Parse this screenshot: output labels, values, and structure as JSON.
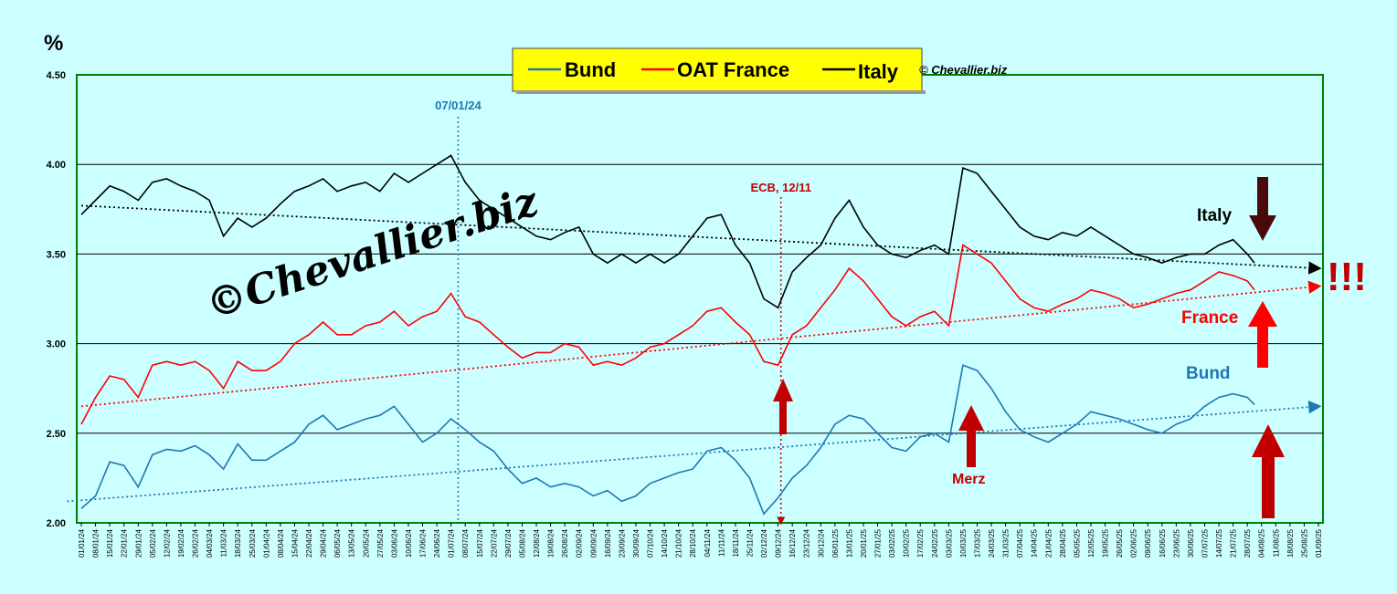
{
  "colors": {
    "background": "#ccffff",
    "plot_border": "#008000",
    "grid": "#000000",
    "bund": "#1f77b4",
    "france": "#ff0000",
    "italy": "#000000",
    "ecb": "#c00000",
    "legend_bg": "#ffff00",
    "big_arrow_red": "#ff0000",
    "big_arrow_dark": "#c00000",
    "italy_arrow": "#4a0a0a"
  },
  "chart_data": {
    "type": "line",
    "ylabel": "%",
    "ylim": [
      2.0,
      4.5
    ],
    "yticks": [
      "2.00",
      "2.50",
      "3.00",
      "3.50",
      "4.00",
      "4.50"
    ],
    "grid": "horizontal",
    "legend_placement": "top-center",
    "x_tick_labels": [
      "01/01/24",
      "08/01/24",
      "15/01/24",
      "22/01/24",
      "29/01/24",
      "05/02/24",
      "12/02/24",
      "19/02/24",
      "26/02/24",
      "04/03/24",
      "11/03/24",
      "18/03/24",
      "25/03/24",
      "01/04/24",
      "08/04/24",
      "15/04/24",
      "22/04/24",
      "29/04/24",
      "06/05/24",
      "13/05/24",
      "20/05/24",
      "27/05/24",
      "03/06/24",
      "10/06/24",
      "17/06/24",
      "24/06/24",
      "01/07/24",
      "08/07/24",
      "15/07/24",
      "22/07/24",
      "29/07/24",
      "05/08/24",
      "12/08/24",
      "19/08/24",
      "26/08/24",
      "02/09/24",
      "09/09/24",
      "16/09/24",
      "23/09/24",
      "30/09/24",
      "07/10/24",
      "14/10/24",
      "21/10/24",
      "28/10/24",
      "04/11/24",
      "11/11/24",
      "18/11/24",
      "25/11/24",
      "02/12/24",
      "09/12/24",
      "16/12/24",
      "23/12/24",
      "30/12/24",
      "06/01/25",
      "13/01/25",
      "20/01/25",
      "27/01/25",
      "03/02/25",
      "10/02/25",
      "17/02/25",
      "24/02/25",
      "03/03/25",
      "10/03/25",
      "17/03/25",
      "24/03/25",
      "31/03/25",
      "07/04/25",
      "14/04/25",
      "21/04/25",
      "28/04/25",
      "05/05/25",
      "12/05/25",
      "19/05/25",
      "26/05/25",
      "02/06/25",
      "09/06/25",
      "16/06/25",
      "23/06/25",
      "30/06/25",
      "07/07/25",
      "14/07/25",
      "21/07/25",
      "28/07/25",
      "04/08/25",
      "11/08/25",
      "18/08/25",
      "25/08/25",
      "01/09/25"
    ],
    "series": [
      {
        "name": "Bund",
        "color_key": "bund",
        "points": [
          [
            0,
            2.08
          ],
          [
            1,
            2.15
          ],
          [
            2,
            2.34
          ],
          [
            3,
            2.32
          ],
          [
            4,
            2.2
          ],
          [
            5,
            2.38
          ],
          [
            6,
            2.41
          ],
          [
            7,
            2.4
          ],
          [
            8,
            2.43
          ],
          [
            9,
            2.38
          ],
          [
            10,
            2.3
          ],
          [
            11,
            2.44
          ],
          [
            12,
            2.35
          ],
          [
            13,
            2.35
          ],
          [
            14,
            2.4
          ],
          [
            15,
            2.45
          ],
          [
            16,
            2.55
          ],
          [
            17,
            2.6
          ],
          [
            18,
            2.52
          ],
          [
            19,
            2.55
          ],
          [
            20,
            2.58
          ],
          [
            21,
            2.6
          ],
          [
            22,
            2.65
          ],
          [
            23,
            2.55
          ],
          [
            24,
            2.45
          ],
          [
            25,
            2.5
          ],
          [
            26,
            2.58
          ],
          [
            27,
            2.52
          ],
          [
            28,
            2.45
          ],
          [
            29,
            2.4
          ],
          [
            30,
            2.3
          ],
          [
            31,
            2.22
          ],
          [
            32,
            2.25
          ],
          [
            33,
            2.2
          ],
          [
            34,
            2.22
          ],
          [
            35,
            2.2
          ],
          [
            36,
            2.15
          ],
          [
            37,
            2.18
          ],
          [
            38,
            2.12
          ],
          [
            39,
            2.15
          ],
          [
            40,
            2.22
          ],
          [
            41,
            2.25
          ],
          [
            42,
            2.28
          ],
          [
            43,
            2.3
          ],
          [
            44,
            2.4
          ],
          [
            45,
            2.42
          ],
          [
            46,
            2.35
          ],
          [
            47,
            2.25
          ],
          [
            48,
            2.05
          ],
          [
            49,
            2.14
          ],
          [
            50,
            2.25
          ],
          [
            51,
            2.32
          ],
          [
            52,
            2.42
          ],
          [
            53,
            2.55
          ],
          [
            54,
            2.6
          ],
          [
            55,
            2.58
          ],
          [
            56,
            2.5
          ],
          [
            57,
            2.42
          ],
          [
            58,
            2.4
          ],
          [
            59,
            2.48
          ],
          [
            60,
            2.5
          ],
          [
            61,
            2.45
          ],
          [
            62,
            2.88
          ],
          [
            63,
            2.85
          ],
          [
            64,
            2.75
          ],
          [
            65,
            2.62
          ],
          [
            66,
            2.52
          ],
          [
            67,
            2.48
          ],
          [
            68,
            2.45
          ],
          [
            69,
            2.5
          ],
          [
            70,
            2.55
          ],
          [
            71,
            2.62
          ],
          [
            72,
            2.6
          ],
          [
            73,
            2.58
          ],
          [
            74,
            2.55
          ],
          [
            75,
            2.52
          ],
          [
            76,
            2.5
          ],
          [
            77,
            2.55
          ],
          [
            78,
            2.58
          ],
          [
            79,
            2.65
          ],
          [
            80,
            2.7
          ],
          [
            81,
            2.72
          ],
          [
            82,
            2.7
          ],
          [
            82.5,
            2.66
          ]
        ],
        "trend": [
          [
            -1,
            2.12
          ],
          [
            87,
            2.65
          ]
        ]
      },
      {
        "name": "OAT France",
        "color_key": "france",
        "points": [
          [
            0,
            2.55
          ],
          [
            1,
            2.7
          ],
          [
            2,
            2.82
          ],
          [
            3,
            2.8
          ],
          [
            4,
            2.7
          ],
          [
            5,
            2.88
          ],
          [
            6,
            2.9
          ],
          [
            7,
            2.88
          ],
          [
            8,
            2.9
          ],
          [
            9,
            2.85
          ],
          [
            10,
            2.75
          ],
          [
            11,
            2.9
          ],
          [
            12,
            2.85
          ],
          [
            13,
            2.85
          ],
          [
            14,
            2.9
          ],
          [
            15,
            3.0
          ],
          [
            16,
            3.05
          ],
          [
            17,
            3.12
          ],
          [
            18,
            3.05
          ],
          [
            19,
            3.05
          ],
          [
            20,
            3.1
          ],
          [
            21,
            3.12
          ],
          [
            22,
            3.18
          ],
          [
            23,
            3.1
          ],
          [
            24,
            3.15
          ],
          [
            25,
            3.18
          ],
          [
            26,
            3.28
          ],
          [
            27,
            3.15
          ],
          [
            28,
            3.12
          ],
          [
            29,
            3.05
          ],
          [
            30,
            2.98
          ],
          [
            31,
            2.92
          ],
          [
            32,
            2.95
          ],
          [
            33,
            2.95
          ],
          [
            34,
            3.0
          ],
          [
            35,
            2.98
          ],
          [
            36,
            2.88
          ],
          [
            37,
            2.9
          ],
          [
            38,
            2.88
          ],
          [
            39,
            2.92
          ],
          [
            40,
            2.98
          ],
          [
            41,
            3.0
          ],
          [
            42,
            3.05
          ],
          [
            43,
            3.1
          ],
          [
            44,
            3.18
          ],
          [
            45,
            3.2
          ],
          [
            46,
            3.12
          ],
          [
            47,
            3.05
          ],
          [
            48,
            2.9
          ],
          [
            49,
            2.88
          ],
          [
            50,
            3.05
          ],
          [
            51,
            3.1
          ],
          [
            52,
            3.2
          ],
          [
            53,
            3.3
          ],
          [
            54,
            3.42
          ],
          [
            55,
            3.35
          ],
          [
            56,
            3.25
          ],
          [
            57,
            3.15
          ],
          [
            58,
            3.1
          ],
          [
            59,
            3.15
          ],
          [
            60,
            3.18
          ],
          [
            61,
            3.1
          ],
          [
            62,
            3.55
          ],
          [
            63,
            3.5
          ],
          [
            64,
            3.45
          ],
          [
            65,
            3.35
          ],
          [
            66,
            3.25
          ],
          [
            67,
            3.2
          ],
          [
            68,
            3.18
          ],
          [
            69,
            3.22
          ],
          [
            70,
            3.25
          ],
          [
            71,
            3.3
          ],
          [
            72,
            3.28
          ],
          [
            73,
            3.25
          ],
          [
            74,
            3.2
          ],
          [
            75,
            3.22
          ],
          [
            76,
            3.25
          ],
          [
            77,
            3.28
          ],
          [
            78,
            3.3
          ],
          [
            79,
            3.35
          ],
          [
            80,
            3.4
          ],
          [
            81,
            3.38
          ],
          [
            82,
            3.35
          ],
          [
            82.5,
            3.3
          ]
        ],
        "trend": [
          [
            0,
            2.65
          ],
          [
            87,
            3.32
          ]
        ]
      },
      {
        "name": "Italy",
        "color_key": "italy",
        "points": [
          [
            0,
            3.72
          ],
          [
            1,
            3.8
          ],
          [
            2,
            3.88
          ],
          [
            3,
            3.85
          ],
          [
            4,
            3.8
          ],
          [
            5,
            3.9
          ],
          [
            6,
            3.92
          ],
          [
            7,
            3.88
          ],
          [
            8,
            3.85
          ],
          [
            9,
            3.8
          ],
          [
            10,
            3.6
          ],
          [
            11,
            3.7
          ],
          [
            12,
            3.65
          ],
          [
            13,
            3.7
          ],
          [
            14,
            3.78
          ],
          [
            15,
            3.85
          ],
          [
            16,
            3.88
          ],
          [
            17,
            3.92
          ],
          [
            18,
            3.85
          ],
          [
            19,
            3.88
          ],
          [
            20,
            3.9
          ],
          [
            21,
            3.85
          ],
          [
            22,
            3.95
          ],
          [
            23,
            3.9
          ],
          [
            24,
            3.95
          ],
          [
            25,
            4.0
          ],
          [
            26,
            4.05
          ],
          [
            27,
            3.9
          ],
          [
            28,
            3.8
          ],
          [
            29,
            3.75
          ],
          [
            30,
            3.7
          ],
          [
            31,
            3.65
          ],
          [
            32,
            3.6
          ],
          [
            33,
            3.58
          ],
          [
            34,
            3.62
          ],
          [
            35,
            3.65
          ],
          [
            36,
            3.5
          ],
          [
            37,
            3.45
          ],
          [
            38,
            3.5
          ],
          [
            39,
            3.45
          ],
          [
            40,
            3.5
          ],
          [
            41,
            3.45
          ],
          [
            42,
            3.5
          ],
          [
            43,
            3.6
          ],
          [
            44,
            3.7
          ],
          [
            45,
            3.72
          ],
          [
            46,
            3.55
          ],
          [
            47,
            3.45
          ],
          [
            48,
            3.25
          ],
          [
            49,
            3.2
          ],
          [
            50,
            3.4
          ],
          [
            51,
            3.48
          ],
          [
            52,
            3.55
          ],
          [
            53,
            3.7
          ],
          [
            54,
            3.8
          ],
          [
            55,
            3.65
          ],
          [
            56,
            3.55
          ],
          [
            57,
            3.5
          ],
          [
            58,
            3.48
          ],
          [
            59,
            3.52
          ],
          [
            60,
            3.55
          ],
          [
            61,
            3.5
          ],
          [
            62,
            3.98
          ],
          [
            63,
            3.95
          ],
          [
            64,
            3.85
          ],
          [
            65,
            3.75
          ],
          [
            66,
            3.65
          ],
          [
            67,
            3.6
          ],
          [
            68,
            3.58
          ],
          [
            69,
            3.62
          ],
          [
            70,
            3.6
          ],
          [
            71,
            3.65
          ],
          [
            72,
            3.6
          ],
          [
            73,
            3.55
          ],
          [
            74,
            3.5
          ],
          [
            75,
            3.48
          ],
          [
            76,
            3.45
          ],
          [
            77,
            3.48
          ],
          [
            78,
            3.5
          ],
          [
            79,
            3.5
          ],
          [
            80,
            3.55
          ],
          [
            81,
            3.58
          ],
          [
            82,
            3.5
          ],
          [
            82.5,
            3.45
          ]
        ],
        "trend": [
          [
            0,
            3.77
          ],
          [
            87,
            3.42
          ]
        ]
      }
    ],
    "annotations": {
      "vline_july": {
        "label": "07/01/24",
        "x": 26.5
      },
      "vline_ecb": {
        "label": "ECB, 12/11",
        "x": 49.2
      },
      "merz": "Merz",
      "italy_label": "Italy",
      "france_label": "France",
      "bund_label": "Bund",
      "exclaim": "!!!",
      "watermark": "©Chevallier.biz",
      "copyright": "© Chevallier.biz"
    }
  }
}
